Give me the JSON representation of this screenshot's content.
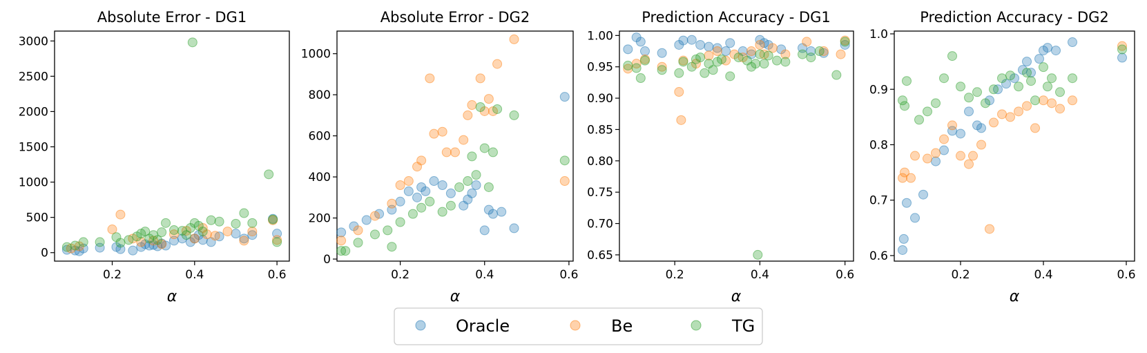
{
  "colors": {
    "Oracle": "#1f77b4",
    "Be": "#ff7f0e",
    "TG": "#2ca02c"
  },
  "legend": {
    "entries": [
      "Oracle",
      "Be",
      "TG"
    ]
  },
  "chart_data": [
    {
      "type": "scatter",
      "title": "Absolute Error - DG1",
      "xlabel": "α",
      "ylabel": "",
      "xlim": [
        0.06,
        0.63
      ],
      "ylim": [
        -120,
        3140
      ],
      "xticks": [
        0.2,
        0.4,
        0.6
      ],
      "xtick_labels": [
        "0.2",
        "0.4",
        "0.6"
      ],
      "yticks": [
        0,
        500,
        1000,
        1500,
        2000,
        2500,
        3000
      ],
      "ytick_labels": [
        "0",
        "500",
        "1000",
        "1500",
        "2000",
        "2500",
        "3000"
      ],
      "series": [
        {
          "name": "Oracle",
          "x": [
            0.09,
            0.11,
            0.12,
            0.13,
            0.17,
            0.21,
            0.22,
            0.25,
            0.27,
            0.28,
            0.29,
            0.3,
            0.31,
            0.32,
            0.33,
            0.35,
            0.37,
            0.39,
            0.4,
            0.41,
            0.42,
            0.44,
            0.46,
            0.5,
            0.52,
            0.54,
            0.59,
            0.6
          ],
          "y": [
            40,
            30,
            20,
            60,
            70,
            80,
            50,
            30,
            80,
            120,
            100,
            110,
            90,
            130,
            100,
            170,
            200,
            150,
            200,
            250,
            180,
            150,
            230,
            270,
            200,
            250,
            480,
            270
          ]
        },
        {
          "name": "Be",
          "x": [
            0.1,
            0.12,
            0.2,
            0.22,
            0.25,
            0.27,
            0.3,
            0.32,
            0.35,
            0.38,
            0.4,
            0.42,
            0.43,
            0.45,
            0.48,
            0.52,
            0.54,
            0.59,
            0.6
          ],
          "y": [
            60,
            90,
            330,
            540,
            200,
            150,
            170,
            120,
            260,
            310,
            200,
            350,
            260,
            240,
            300,
            170,
            300,
            460,
            180
          ]
        },
        {
          "name": "TG",
          "x": [
            0.09,
            0.11,
            0.13,
            0.17,
            0.21,
            0.22,
            0.24,
            0.26,
            0.27,
            0.28,
            0.29,
            0.3,
            0.31,
            0.32,
            0.33,
            0.35,
            0.37,
            0.38,
            0.39,
            0.395,
            0.4,
            0.41,
            0.42,
            0.44,
            0.46,
            0.5,
            0.52,
            0.54,
            0.58,
            0.59,
            0.6
          ],
          "y": [
            80,
            100,
            150,
            150,
            220,
            140,
            180,
            230,
            270,
            300,
            200,
            250,
            180,
            290,
            420,
            320,
            310,
            250,
            350,
            2980,
            420,
            380,
            300,
            460,
            440,
            410,
            560,
            420,
            1110,
            470,
            150
          ]
        }
      ]
    },
    {
      "type": "scatter",
      "title": "Absolute Error - DG2",
      "xlabel": "α",
      "ylabel": "",
      "xlim": [
        0.05,
        0.61
      ],
      "ylim": [
        -10,
        1110
      ],
      "xticks": [
        0.2,
        0.4,
        0.6
      ],
      "xtick_labels": [
        "0.2",
        "0.4",
        "0.6"
      ],
      "yticks": [
        0,
        200,
        400,
        600,
        800,
        1000
      ],
      "ytick_labels": [
        "0",
        "200",
        "400",
        "600",
        "800",
        "1000"
      ],
      "series": [
        {
          "name": "Oracle",
          "x": [
            0.06,
            0.09,
            0.12,
            0.15,
            0.18,
            0.2,
            0.22,
            0.24,
            0.25,
            0.26,
            0.28,
            0.3,
            0.32,
            0.35,
            0.36,
            0.37,
            0.38,
            0.4,
            0.41,
            0.42,
            0.44,
            0.47,
            0.59
          ],
          "y": [
            130,
            160,
            190,
            220,
            240,
            280,
            330,
            300,
            350,
            330,
            380,
            360,
            320,
            260,
            290,
            320,
            360,
            140,
            240,
            220,
            230,
            150,
            790
          ]
        },
        {
          "name": "Be",
          "x": [
            0.06,
            0.1,
            0.14,
            0.18,
            0.2,
            0.22,
            0.24,
            0.25,
            0.27,
            0.28,
            0.3,
            0.31,
            0.33,
            0.35,
            0.36,
            0.37,
            0.39,
            0.4,
            0.41,
            0.42,
            0.43,
            0.47,
            0.59
          ],
          "y": [
            90,
            140,
            210,
            270,
            360,
            380,
            450,
            480,
            880,
            610,
            620,
            520,
            520,
            580,
            700,
            750,
            880,
            720,
            780,
            720,
            950,
            1070,
            380
          ]
        },
        {
          "name": "TG",
          "x": [
            0.06,
            0.07,
            0.1,
            0.14,
            0.17,
            0.18,
            0.2,
            0.23,
            0.25,
            0.27,
            0.3,
            0.32,
            0.34,
            0.36,
            0.37,
            0.38,
            0.39,
            0.4,
            0.41,
            0.42,
            0.43,
            0.47,
            0.59
          ],
          "y": [
            40,
            40,
            80,
            120,
            140,
            60,
            180,
            220,
            250,
            280,
            230,
            260,
            350,
            380,
            500,
            410,
            740,
            540,
            350,
            520,
            730,
            700,
            480
          ]
        }
      ]
    },
    {
      "type": "scatter",
      "title": "Prediction Accuracy - DG1",
      "xlabel": "α",
      "ylabel": "",
      "xlim": [
        0.07,
        0.62
      ],
      "ylim": [
        0.64,
        1.007
      ],
      "xticks": [
        0.2,
        0.4,
        0.6
      ],
      "xtick_labels": [
        "0.2",
        "0.4",
        "0.6"
      ],
      "yticks": [
        0.65,
        0.7,
        0.75,
        0.8,
        0.85,
        0.9,
        0.95,
        1.0
      ],
      "ytick_labels": [
        "0.65",
        "0.70",
        "0.75",
        "0.80",
        "0.85",
        "0.90",
        "0.95",
        "1.00"
      ],
      "series": [
        {
          "name": "Oracle",
          "x": [
            0.09,
            0.11,
            0.12,
            0.13,
            0.17,
            0.21,
            0.22,
            0.24,
            0.26,
            0.28,
            0.3,
            0.32,
            0.33,
            0.36,
            0.38,
            0.4,
            0.41,
            0.42,
            0.45,
            0.5,
            0.52,
            0.55,
            0.6
          ],
          "y": [
            0.978,
            0.997,
            0.99,
            0.975,
            0.972,
            0.985,
            0.992,
            0.993,
            0.985,
            0.982,
            0.98,
            0.975,
            0.988,
            0.975,
            0.97,
            0.993,
            0.988,
            0.985,
            0.978,
            0.98,
            0.975,
            0.972,
            0.985
          ]
        },
        {
          "name": "Be",
          "x": [
            0.09,
            0.11,
            0.13,
            0.17,
            0.21,
            0.215,
            0.22,
            0.25,
            0.28,
            0.3,
            0.32,
            0.34,
            0.36,
            0.38,
            0.4,
            0.41,
            0.43,
            0.46,
            0.51,
            0.55,
            0.59,
            0.6
          ],
          "y": [
            0.947,
            0.955,
            0.962,
            0.95,
            0.91,
            0.865,
            0.96,
            0.955,
            0.968,
            0.975,
            0.96,
            0.97,
            0.965,
            0.975,
            0.985,
            0.97,
            0.98,
            0.97,
            0.99,
            0.975,
            0.97,
            0.992
          ]
        },
        {
          "name": "TG",
          "x": [
            0.09,
            0.11,
            0.12,
            0.13,
            0.17,
            0.21,
            0.22,
            0.24,
            0.25,
            0.26,
            0.27,
            0.28,
            0.29,
            0.3,
            0.31,
            0.33,
            0.35,
            0.37,
            0.38,
            0.39,
            0.395,
            0.4,
            0.41,
            0.42,
            0.44,
            0.46,
            0.5,
            0.52,
            0.54,
            0.58,
            0.6
          ],
          "y": [
            0.952,
            0.948,
            0.932,
            0.96,
            0.945,
            0.94,
            0.958,
            0.95,
            0.962,
            0.965,
            0.94,
            0.955,
            0.945,
            0.958,
            0.962,
            0.935,
            0.965,
            0.96,
            0.95,
            0.955,
            0.65,
            0.97,
            0.955,
            0.968,
            0.96,
            0.958,
            0.97,
            0.965,
            0.975,
            0.937,
            0.99
          ]
        }
      ]
    },
    {
      "type": "scatter",
      "title": "Prediction Accuracy - DG2",
      "xlabel": "α",
      "ylabel": "",
      "xlim": [
        0.04,
        0.62
      ],
      "ylim": [
        0.59,
        1.005
      ],
      "xticks": [
        0.2,
        0.4,
        0.6
      ],
      "xtick_labels": [
        "0.2",
        "0.4",
        "0.6"
      ],
      "yticks": [
        0.6,
        0.7,
        0.8,
        0.9,
        1.0
      ],
      "ytick_labels": [
        "0.6",
        "0.7",
        "0.8",
        "0.9",
        "1.0"
      ],
      "series": [
        {
          "name": "Oracle",
          "x": [
            0.06,
            0.063,
            0.07,
            0.09,
            0.11,
            0.14,
            0.16,
            0.18,
            0.2,
            0.22,
            0.24,
            0.25,
            0.27,
            0.29,
            0.31,
            0.33,
            0.35,
            0.36,
            0.37,
            0.39,
            0.4,
            0.41,
            0.43,
            0.47,
            0.59
          ],
          "y": [
            0.61,
            0.63,
            0.695,
            0.668,
            0.71,
            0.77,
            0.79,
            0.825,
            0.82,
            0.86,
            0.835,
            0.83,
            0.88,
            0.9,
            0.91,
            0.92,
            0.935,
            0.95,
            0.93,
            0.955,
            0.97,
            0.975,
            0.97,
            0.985,
            0.957
          ]
        },
        {
          "name": "Be",
          "x": [
            0.06,
            0.065,
            0.08,
            0.09,
            0.12,
            0.14,
            0.16,
            0.18,
            0.2,
            0.22,
            0.23,
            0.25,
            0.27,
            0.28,
            0.3,
            0.32,
            0.34,
            0.36,
            0.38,
            0.4,
            0.42,
            0.44,
            0.47,
            0.59
          ],
          "y": [
            0.74,
            0.75,
            0.74,
            0.78,
            0.775,
            0.785,
            0.81,
            0.835,
            0.78,
            0.765,
            0.78,
            0.8,
            0.648,
            0.84,
            0.855,
            0.85,
            0.86,
            0.87,
            0.83,
            0.88,
            0.875,
            0.865,
            0.88,
            0.978
          ]
        },
        {
          "name": "TG",
          "x": [
            0.06,
            0.065,
            0.07,
            0.1,
            0.12,
            0.14,
            0.16,
            0.18,
            0.2,
            0.22,
            0.24,
            0.26,
            0.28,
            0.3,
            0.32,
            0.34,
            0.36,
            0.37,
            0.38,
            0.4,
            0.41,
            0.42,
            0.44,
            0.47,
            0.59
          ],
          "y": [
            0.88,
            0.87,
            0.915,
            0.845,
            0.86,
            0.875,
            0.92,
            0.96,
            0.905,
            0.885,
            0.895,
            0.875,
            0.9,
            0.92,
            0.925,
            0.905,
            0.93,
            0.915,
            0.88,
            0.94,
            0.905,
            0.92,
            0.895,
            0.92,
            0.972
          ]
        }
      ]
    }
  ]
}
